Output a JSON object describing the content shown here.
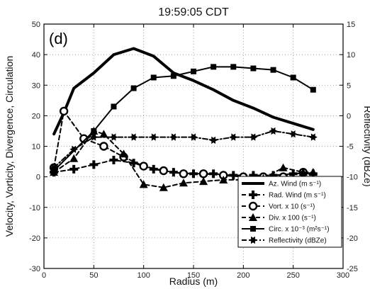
{
  "chart_data": {
    "type": "line",
    "title": "19:59:05 CDT",
    "panel_label": "(d)",
    "xlabel": "Radius (m)",
    "ylabel_left": "Velocity, Vorticity, Divergence, Circulation",
    "ylabel_right": "Reflectivity (dBZe)",
    "xlim": [
      0,
      300
    ],
    "ylim_left": [
      -30,
      50
    ],
    "ylim_right": [
      -25,
      15
    ],
    "xticks": [
      0,
      50,
      100,
      150,
      200,
      250,
      300
    ],
    "yticks_left": [
      -30,
      -20,
      -10,
      0,
      10,
      20,
      30,
      40,
      50
    ],
    "yticks_right": [
      -25,
      -20,
      -15,
      -10,
      -5,
      0,
      5,
      10,
      15
    ],
    "grid": true,
    "legend_position": "lower-right",
    "series": [
      {
        "name": "Az. Wind (m s⁻¹)",
        "axis": "left",
        "style": "solid",
        "marker": "none",
        "width": 4,
        "x": [
          10,
          20,
          30,
          50,
          70,
          90,
          110,
          130,
          150,
          170,
          190,
          210,
          230,
          250,
          270
        ],
        "y": [
          14,
          21,
          29,
          34,
          40,
          42,
          39.5,
          34,
          31.5,
          28.5,
          25,
          22.5,
          19.5,
          17.5,
          15.5
        ]
      },
      {
        "name": "Rad. Wind (m s⁻¹)",
        "axis": "left",
        "style": "dashed",
        "marker": "plus",
        "width": 2,
        "x": [
          10,
          30,
          50,
          70,
          90,
          110,
          130,
          150,
          170,
          190,
          210,
          230,
          250,
          270
        ],
        "y": [
          1.5,
          2.5,
          4,
          5.5,
          4.5,
          2.5,
          1.5,
          1,
          1,
          0.5,
          0.5,
          0.5,
          1,
          1
        ]
      },
      {
        "name": "Vort. x 10 (s⁻¹)",
        "axis": "left",
        "style": "dashed",
        "marker": "circle",
        "width": 2,
        "x": [
          10,
          20,
          40,
          60,
          80,
          100,
          120,
          140,
          160,
          180,
          200,
          220,
          240,
          260
        ],
        "y": [
          3,
          21.5,
          12.5,
          10,
          6.5,
          3.5,
          2,
          1,
          1,
          0.5,
          0,
          0,
          0,
          1.5
        ]
      },
      {
        "name": "Div. x 100 (s⁻¹)",
        "axis": "left",
        "style": "dashed",
        "marker": "triangle",
        "width": 2,
        "x": [
          10,
          30,
          50,
          60,
          80,
          100,
          120,
          140,
          160,
          180,
          200,
          220,
          240,
          260,
          270
        ],
        "y": [
          1.5,
          6,
          15,
          14,
          7.5,
          -2.5,
          -3.5,
          -2,
          -1.5,
          -1,
          -1,
          -0.5,
          3,
          1.5,
          1.5
        ]
      },
      {
        "name": "Circ. x 10⁻³ (m²s⁻¹)",
        "axis": "left",
        "style": "solid",
        "marker": "square",
        "width": 2,
        "x": [
          10,
          50,
          70,
          90,
          110,
          130,
          150,
          170,
          190,
          210,
          230,
          250,
          270
        ],
        "y": [
          2,
          15,
          23,
          29,
          32.5,
          33,
          34.5,
          36,
          36,
          35.5,
          35,
          32.5,
          28.5
        ]
      },
      {
        "name": "Reflectivity (dBZe)",
        "axis": "right",
        "style": "dashdot",
        "marker": "star",
        "width": 2,
        "x": [
          10,
          30,
          50,
          70,
          90,
          110,
          130,
          150,
          170,
          190,
          210,
          230,
          250,
          270
        ],
        "y": [
          -8.5,
          -5.5,
          -3.5,
          -3.5,
          -3.5,
          -3.5,
          -3.5,
          -3.5,
          -4,
          -3.5,
          -3.5,
          -2.5,
          -3,
          -3.5
        ]
      }
    ]
  }
}
